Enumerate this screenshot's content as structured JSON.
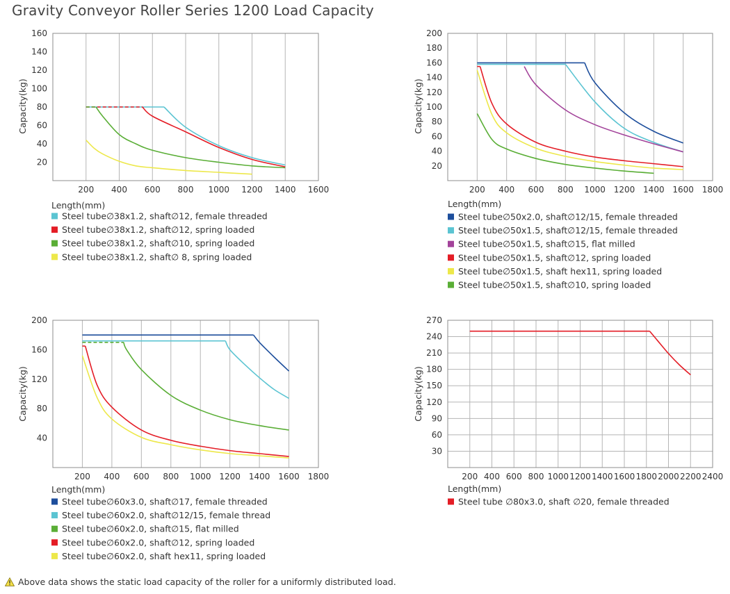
{
  "title": "Gravity Conveyor Roller Series 1200 Load Capacity",
  "footnote": "Above data shows the static load capacity of the roller for a uniformly distributed load.",
  "icons": {
    "footnote": "warning-icon"
  },
  "chart_data": [
    {
      "type": "line",
      "xlabel": "Length(mm)",
      "ylabel": "Capacity(kg)",
      "xlim": [
        0,
        1600
      ],
      "ylim": [
        0,
        160
      ],
      "xticks": [
        200,
        400,
        600,
        800,
        1000,
        1200,
        1400,
        1600
      ],
      "yticks": [
        20,
        40,
        60,
        80,
        100,
        120,
        140,
        160
      ],
      "grid": "vertical",
      "legend": "below",
      "series": [
        {
          "name": "Steel tube∅38x1.2, shaft∅12, female threaded",
          "color": "#5bc4d2",
          "x": [
            200,
            670,
            800,
            1000,
            1200,
            1400
          ],
          "y": [
            80,
            80,
            58,
            38,
            25,
            17
          ]
        },
        {
          "name": "Steel tube∅38x1.2, shaft∅12, spring loaded",
          "color": "#e41d26",
          "x": [
            200,
            540,
            600,
            800,
            1000,
            1200,
            1400
          ],
          "y": [
            80,
            80,
            70,
            53,
            36,
            23,
            15
          ]
        },
        {
          "name": "Steel tube∅38x1.2, shaft∅10, spring loaded",
          "color": "#5aae36",
          "x": [
            200,
            260,
            300,
            400,
            500,
            600,
            800,
            1000,
            1200,
            1400
          ],
          "y": [
            80,
            80,
            70,
            50,
            40,
            33,
            25,
            20,
            16,
            14
          ]
        },
        {
          "name": "Steel tube∅38x1.2, shaft∅ 8, spring loaded",
          "color": "#ede84a",
          "x": [
            200,
            250,
            300,
            400,
            500,
            600,
            800,
            1000,
            1200
          ],
          "y": [
            44,
            35,
            29,
            21,
            16,
            14,
            11,
            9,
            7
          ]
        }
      ]
    },
    {
      "type": "line",
      "xlabel": "Length(mm)",
      "ylabel": "Capacity(kg)",
      "xlim": [
        0,
        1800
      ],
      "ylim": [
        0,
        200
      ],
      "xticks": [
        200,
        400,
        600,
        800,
        1000,
        1200,
        1400,
        1600,
        1800
      ],
      "yticks": [
        20,
        40,
        60,
        80,
        100,
        120,
        140,
        160,
        180,
        200
      ],
      "grid": "vertical",
      "legend": "below",
      "series": [
        {
          "name": "Steel tube∅50x2.0, shaft∅12/15, female threaded",
          "color": "#1d4e9c",
          "x": [
            200,
            930,
            1000,
            1200,
            1400,
            1600
          ],
          "y": [
            160,
            160,
            133,
            92,
            67,
            51
          ]
        },
        {
          "name": "Steel tube∅50x1.5, shaft∅12/15, female threaded",
          "color": "#5bc4d2",
          "x": [
            200,
            800,
            1000,
            1200,
            1400,
            1600
          ],
          "y": [
            158,
            158,
            107,
            71,
            52,
            39
          ]
        },
        {
          "name": "Steel tube∅50x1.5, shaft∅15, flat milled",
          "color": "#a3439a",
          "x": [
            520,
            600,
            800,
            1000,
            1200,
            1400,
            1600
          ],
          "y": [
            155,
            130,
            96,
            76,
            62,
            50,
            39
          ]
        },
        {
          "name": "Steel tube∅50x1.5, shaft∅12, spring loaded",
          "color": "#e41d26",
          "x": [
            200,
            220,
            300,
            400,
            600,
            800,
            1000,
            1200,
            1400,
            1600
          ],
          "y": [
            155,
            155,
            105,
            77,
            52,
            40,
            32,
            27,
            23,
            19
          ]
        },
        {
          "name": "Steel tube∅50x1.5, shaft hex11, spring loaded",
          "color": "#ede84a",
          "x": [
            200,
            300,
            400,
            600,
            800,
            1000,
            1200,
            1400,
            1600
          ],
          "y": [
            150,
            90,
            65,
            44,
            33,
            26,
            21,
            17,
            15
          ]
        },
        {
          "name": "Steel tube∅50x1.5, shaft∅10, spring loaded",
          "color": "#5aae36",
          "x": [
            200,
            300,
            400,
            600,
            800,
            1000,
            1200,
            1400
          ],
          "y": [
            91,
            56,
            43,
            30,
            22,
            17,
            13,
            10
          ]
        }
      ]
    },
    {
      "type": "line",
      "xlabel": "Length(mm)",
      "ylabel": "Capacity(kg)",
      "xlim": [
        0,
        1800
      ],
      "ylim": [
        0,
        200
      ],
      "xticks": [
        200,
        400,
        600,
        800,
        1000,
        1200,
        1400,
        1600,
        1800
      ],
      "yticks": [
        40,
        80,
        120,
        160,
        200
      ],
      "grid": "vertical",
      "legend": "below",
      "series": [
        {
          "name": "Steel tube∅60x3.0, shaft∅17, female threaded",
          "color": "#1d4e9c",
          "x": [
            200,
            1360,
            1400,
            1500,
            1600
          ],
          "y": [
            180,
            180,
            170,
            150,
            131
          ]
        },
        {
          "name": "Steel tube∅60x2.0, shaft∅12/15, female thread",
          "color": "#5bc4d2",
          "x": [
            200,
            1170,
            1200,
            1300,
            1400,
            1500,
            1600
          ],
          "y": [
            172,
            172,
            160,
            140,
            122,
            106,
            94
          ]
        },
        {
          "name": "Steel tube∅60x2.0, shaft∅15, flat milled",
          "color": "#5aae36",
          "x": [
            200,
            480,
            500,
            600,
            800,
            1000,
            1200,
            1400,
            1600
          ],
          "y": [
            170,
            170,
            160,
            133,
            98,
            78,
            65,
            57,
            51
          ]
        },
        {
          "name": "Steel tube∅60x2.0, shaft∅12, spring loaded",
          "color": "#e41d26",
          "x": [
            200,
            220,
            300,
            400,
            600,
            800,
            1000,
            1200,
            1400,
            1600
          ],
          "y": [
            165,
            165,
            112,
            82,
            51,
            37,
            29,
            23,
            19,
            15
          ]
        },
        {
          "name": "Steel tube∅60x2.0, shaft hex11, spring loaded",
          "color": "#ede84a",
          "x": [
            200,
            300,
            400,
            600,
            800,
            1000,
            1200,
            1400,
            1600
          ],
          "y": [
            152,
            95,
            66,
            41,
            31,
            24,
            19,
            16,
            13
          ]
        }
      ]
    },
    {
      "type": "line",
      "xlabel": "Length(mm)",
      "ylabel": "Capacity(kg)",
      "xlim": [
        0,
        2400
      ],
      "ylim": [
        0,
        270
      ],
      "xticks": [
        200,
        400,
        600,
        800,
        1000,
        1200,
        1400,
        1600,
        1800,
        2000,
        2200,
        2400
      ],
      "yticks": [
        30,
        60,
        90,
        120,
        150,
        180,
        210,
        240,
        270
      ],
      "grid": "both",
      "legend": "below",
      "series": [
        {
          "name": "Steel tube ∅80x3.0, shaft ∅20, female threaded",
          "color": "#e41d26",
          "x": [
            200,
            1830,
            1900,
            2000,
            2100,
            2200
          ],
          "y": [
            250,
            250,
            233,
            209,
            188,
            170
          ]
        }
      ]
    }
  ]
}
